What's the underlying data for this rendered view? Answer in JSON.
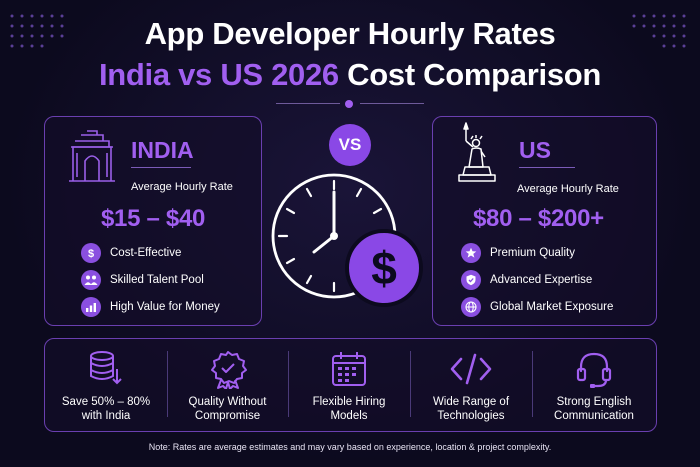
{
  "header": {
    "title_line1": "App Developer Hourly Rates",
    "title_line2_accent": "India vs US 2026",
    "title_line2_rest": " Cost Comparison"
  },
  "vs_label": "VS",
  "india": {
    "country": "INDIA",
    "rate_label": "Average Hourly Rate",
    "price": "$15 – $40",
    "features": [
      {
        "icon": "dollar-icon",
        "label": "Cost-Effective"
      },
      {
        "icon": "people-icon",
        "label": "Skilled Talent Pool"
      },
      {
        "icon": "chart-icon",
        "label": "High Value for Money"
      }
    ]
  },
  "us": {
    "country": "US",
    "rate_label": "Average Hourly Rate",
    "price": "$80 – $200+",
    "features": [
      {
        "icon": "star-icon",
        "label": "Premium Quality"
      },
      {
        "icon": "shield-icon",
        "label": "Advanced Expertise"
      },
      {
        "icon": "globe-icon",
        "label": "Global Market Exposure"
      }
    ]
  },
  "benefits": [
    {
      "icon": "database-icon",
      "line1": "Save 50% – 80%",
      "line2": "with India"
    },
    {
      "icon": "badge-icon",
      "line1": "Quality Without",
      "line2": "Compromise"
    },
    {
      "icon": "calendar-icon",
      "line1": "Flexible Hiring",
      "line2": "Models"
    },
    {
      "icon": "code-icon",
      "line1": "Wide Range of",
      "line2": "Technologies"
    },
    {
      "icon": "headset-icon",
      "line1": "Strong English",
      "line2": "Communication"
    }
  ],
  "note": "Note: Rates are average estimates and may vary based on experience, location & project complexity.",
  "colors": {
    "accent": "#a15ff0",
    "background": "#0c0a1e",
    "border": "#6a3fb0"
  }
}
